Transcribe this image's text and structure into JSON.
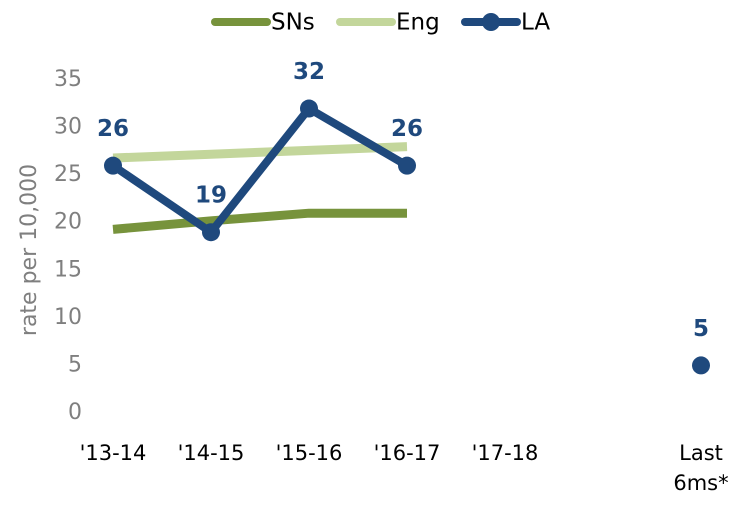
{
  "chart_data": {
    "type": "line",
    "y_label": "rate per 10,000",
    "categories": [
      "'13-14",
      "'14-15",
      "'15-16",
      "'16-17",
      "'17-18",
      null,
      "Last 6ms*"
    ],
    "series": [
      {
        "name": "SNs",
        "color": "#77933c",
        "values": [
          19.3,
          20.2,
          21,
          21,
          null,
          null,
          null
        ]
      },
      {
        "name": "Eng",
        "color": "#c3d69b",
        "values": [
          26.8,
          27.2,
          27.6,
          28,
          null,
          null,
          null
        ]
      },
      {
        "name": "LA",
        "color": "#1f497d",
        "values": [
          26,
          19,
          32,
          26,
          null,
          null,
          5
        ],
        "markers": true,
        "data_labels": true
      }
    ],
    "ylim": [
      0,
      35
    ],
    "yticks": [
      0,
      5,
      10,
      15,
      20,
      25,
      30,
      35
    ],
    "grid": false,
    "legend": "top"
  }
}
